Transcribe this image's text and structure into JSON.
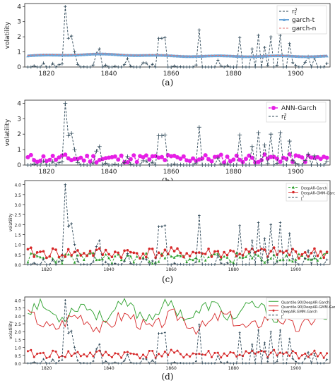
{
  "chart_data": [
    {
      "type": "line",
      "panel": "a",
      "caption": "(a)",
      "ylabel": "volatility",
      "xlim": [
        1813,
        1911
      ],
      "ylim": [
        0,
        4.2
      ],
      "yticks": [
        0,
        1,
        2,
        3,
        4
      ],
      "xticks": [
        1820,
        1840,
        1860,
        1880,
        1900
      ],
      "legend_position": "top-right",
      "series": [
        {
          "name": "r_t^2",
          "role": "actual",
          "color": "#2f4858"
        },
        {
          "name": "garch-t",
          "role": "garch_t",
          "color": "#6ca6d9"
        },
        {
          "name": "garch-n",
          "role": "garch_n",
          "color": "#e07070"
        }
      ]
    },
    {
      "type": "line",
      "panel": "b",
      "caption": "(b)",
      "ylabel": "volatility",
      "xlim": [
        1813,
        1911
      ],
      "ylim": [
        0,
        4.2
      ],
      "yticks": [
        0,
        1,
        2,
        3,
        4
      ],
      "xticks": [
        1820,
        1840,
        1860,
        1880,
        1900
      ],
      "legend_position": "top-right",
      "series": [
        {
          "name": "ANN-Garch",
          "role": "ann",
          "color": "#e61ee6"
        },
        {
          "name": "r_t^2",
          "role": "actual",
          "color": "#2f4858"
        }
      ]
    },
    {
      "type": "line",
      "panel": "c",
      "caption": "(c)",
      "ylabel": "volatility",
      "xlim": [
        1813,
        1911
      ],
      "ylim": [
        0,
        4.2
      ],
      "yticks": [
        0.0,
        0.5,
        1.0,
        1.5,
        2.0,
        2.5,
        3.0,
        3.5,
        4.0
      ],
      "xticks": [
        1820,
        1840,
        1860,
        1880,
        1900
      ],
      "legend_position": "top-right",
      "series": [
        {
          "name": "DeepAR-Garch",
          "role": "deepar",
          "color": "#2ca02c"
        },
        {
          "name": "DeepAR-GMM-Garch",
          "role": "gmm",
          "color": "#d62728"
        },
        {
          "name": "r_t^2",
          "role": "actual",
          "color": "#2f4858"
        }
      ]
    },
    {
      "type": "line",
      "panel": "d",
      "caption": "(d)",
      "ylabel": "volatility",
      "xlim": [
        1813,
        1911
      ],
      "ylim": [
        0,
        4.2
      ],
      "yticks": [
        0.0,
        0.5,
        1.0,
        1.5,
        2.0,
        2.5,
        3.0,
        3.5,
        4.0
      ],
      "xticks": [
        1820,
        1840,
        1860,
        1880,
        1900
      ],
      "legend_position": "top-right",
      "series": [
        {
          "name": "Quantile-90(DeepAR-Garch)",
          "role": "q90a",
          "color": "#2ca02c"
        },
        {
          "name": "Quantile-90(DeepAR-GMM-Garch)",
          "role": "q90b",
          "color": "#d62728"
        },
        {
          "name": "DeepAR-GMM-Garch",
          "role": "gmm",
          "color": "#d62728"
        },
        {
          "name": "r_t^2",
          "role": "actual",
          "color": "#2f4858"
        }
      ]
    }
  ]
}
